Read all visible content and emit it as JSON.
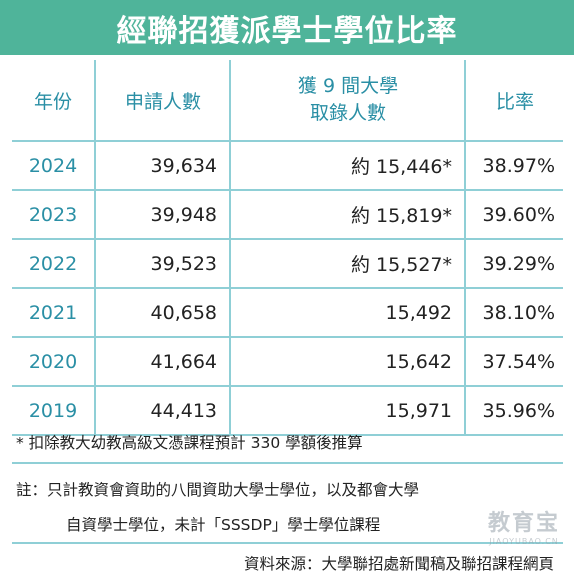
{
  "title": "經聯招獲派學士學位比率",
  "table": {
    "headers": {
      "year": "年份",
      "applicants": "申請人數",
      "admitted_line1": "獲 9 間大學",
      "admitted_line2": "取錄人數",
      "rate": "比率"
    },
    "rows": [
      {
        "year": "2024",
        "applicants": "39,634",
        "admitted": "約 15,446*",
        "rate": "38.97%"
      },
      {
        "year": "2023",
        "applicants": "39,948",
        "admitted": "約 15,819*",
        "rate": "39.60%"
      },
      {
        "year": "2022",
        "applicants": "39,523",
        "admitted": "約 15,527*",
        "rate": "39.29%"
      },
      {
        "year": "2021",
        "applicants": "40,658",
        "admitted": "15,492",
        "rate": "38.10%"
      },
      {
        "year": "2020",
        "applicants": "41,664",
        "admitted": "15,642",
        "rate": "37.54%"
      },
      {
        "year": "2019",
        "applicants": "44,413",
        "admitted": "15,971",
        "rate": "35.96%"
      }
    ]
  },
  "notes": {
    "footnote": "* 扣除教大幼教高級文憑課程預計 330 學額後推算",
    "remark_line1": "註：只計教資會資助的八間資助大學士學位，以及都會大學",
    "remark_line2": "自資學士學位，未計「SSSDP」學士學位課程",
    "source": "資料來源：大學聯招處新聞稿及聯招課程網頁"
  },
  "watermark": {
    "name": "教育宝",
    "url": "JIAOYUBAO.CN"
  }
}
